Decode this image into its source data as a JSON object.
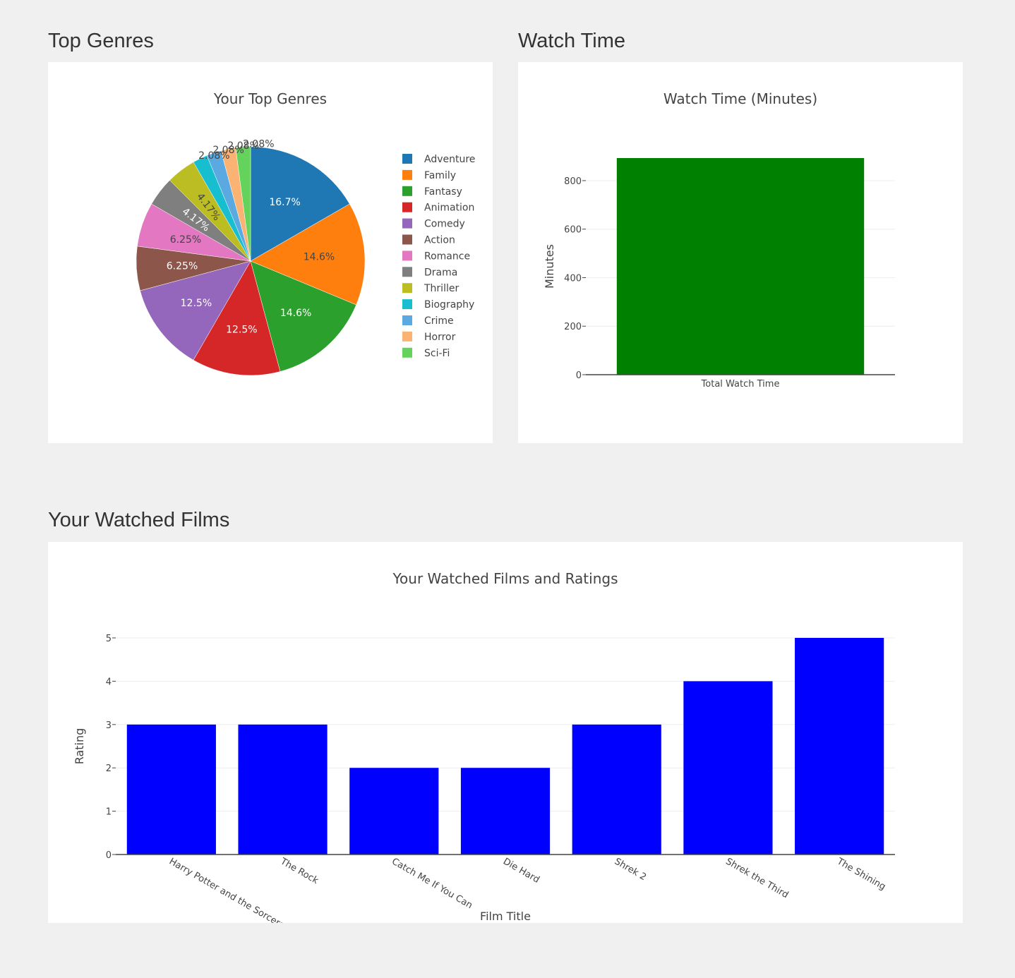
{
  "sections": {
    "genres_title": "Top Genres",
    "watch_time_title": "Watch Time",
    "films_title": "Your Watched Films"
  },
  "chart_data": [
    {
      "id": "genres",
      "type": "pie",
      "title": "Your Top Genres",
      "labels": [
        "Adventure",
        "Family",
        "Fantasy",
        "Animation",
        "Comedy",
        "Action",
        "Romance",
        "Drama",
        "Thriller",
        "Biography",
        "Crime",
        "Horror",
        "Sci-Fi"
      ],
      "values": [
        8,
        7,
        7,
        6,
        6,
        3,
        3,
        2,
        2,
        1,
        1,
        1,
        1
      ],
      "percent_labels": [
        "16.7%",
        "14.6%",
        "14.6%",
        "12.5%",
        "12.5%",
        "6.25%",
        "6.25%",
        "4.17%",
        "4.17%",
        "2.08%",
        "2.08%",
        "2.08%",
        "2.08%"
      ],
      "colors": [
        "#1f77b4",
        "#ff7f0e",
        "#2ca02c",
        "#d62728",
        "#9467bd",
        "#8c564b",
        "#e377c2",
        "#7f7f7f",
        "#bcbd22",
        "#17becf",
        "#5aa9e0",
        "#fbb374",
        "#63d35c"
      ],
      "label_text_colors": [
        "#ffffff",
        "#444444",
        "#ffffff",
        "#ffffff",
        "#ffffff",
        "#ffffff",
        "#444444",
        "#ffffff",
        "#444444",
        "#444444",
        "#444444",
        "#444444",
        "#444444"
      ],
      "legend_position": "right"
    },
    {
      "id": "watch_time",
      "type": "bar",
      "title": "Watch Time (Minutes)",
      "categories": [
        "Total Watch Time"
      ],
      "values": [
        893
      ],
      "ylabel": "Minutes",
      "xlabel": "",
      "ylim": [
        0,
        893
      ],
      "yticks": [
        0,
        200,
        400,
        600,
        800
      ],
      "color": "#008000"
    },
    {
      "id": "films",
      "type": "bar",
      "title": "Your Watched Films and Ratings",
      "categories": [
        "Harry Potter and the Sorcerer's Stone",
        "The Rock",
        "Catch Me If You Can",
        "Die Hard",
        "Shrek 2",
        "Shrek the Third",
        "The Shining"
      ],
      "values": [
        3,
        3,
        2,
        2,
        3,
        4,
        5
      ],
      "xlabel": "Film Title",
      "ylabel": "Rating",
      "ylim": [
        0,
        5
      ],
      "yticks": [
        0,
        1,
        2,
        3,
        4,
        5
      ],
      "color": "#0000ff"
    }
  ]
}
